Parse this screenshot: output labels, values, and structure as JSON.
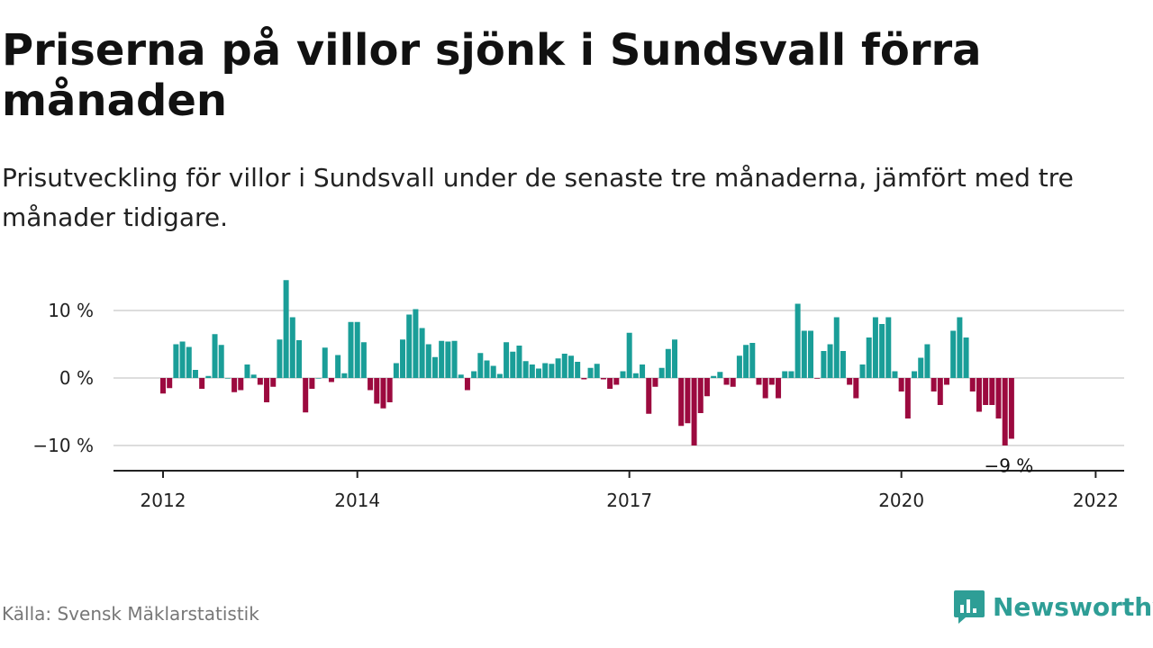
{
  "title": "Priserna på villor sjönk i Sundsvall förra månaden",
  "subtitle": "Prisutveckling för villor i Sundsvall under de senaste tre månaderna, jämfört med tre månader tidigare.",
  "source": "Källa: Svensk Mäklarstatistik",
  "brand": "Newsworthy",
  "colors": {
    "positive": "#1a9e98",
    "negative": "#9c0a3f",
    "grid": "#dddddd",
    "axis": "#222222",
    "brand": "#2e9e96"
  },
  "chart_data": {
    "type": "bar",
    "title": "Priserna på villor sjönk i Sundsvall förra månaden",
    "xlabel": "",
    "ylabel": "",
    "ylim": [
      -13,
      15
    ],
    "y_ticks": [
      10,
      0,
      -10
    ],
    "y_tick_labels": [
      "10 %",
      "0 %",
      "−10 %"
    ],
    "x_ticks": [
      {
        "at": "2012-01",
        "label": "2012"
      },
      {
        "at": "2014-07",
        "label": "2014"
      },
      {
        "at": "2018-01",
        "label": "2017"
      },
      {
        "at": "2021-07",
        "label": "2020"
      },
      {
        "at": "2024-01",
        "label": "2022"
      }
    ],
    "grid": true,
    "last_label": "−9 %",
    "series": [
      {
        "start": "2012-01",
        "values": [
          -2.3,
          -1.5,
          5,
          5.4,
          4.6,
          1.2,
          -1.6,
          0.3,
          6.5,
          4.9,
          0,
          -2.1,
          -1.8,
          2,
          0.5,
          -1,
          -3.6,
          -1.3,
          5.7,
          14.5,
          9,
          5.6,
          -5.1,
          -1.6,
          0,
          4.5,
          -0.6,
          3.4,
          0.7,
          8.3,
          8.3,
          5.3,
          -1.8,
          -3.8,
          -4.5,
          -3.6,
          2.2,
          5.7,
          9.4,
          10.2,
          7.4,
          5,
          3.1,
          5.5,
          5.4,
          5.5,
          0.5,
          -1.8,
          1,
          3.7,
          2.6,
          1.8,
          0.6,
          5.3,
          3.9,
          4.8,
          2.5,
          2,
          1.4,
          2.2,
          2.1,
          2.9,
          3.6,
          3.3,
          2.4,
          -0.2,
          1.5,
          2.1,
          -0.2,
          -1.6,
          -1,
          1,
          6.7,
          0.7,
          2,
          -5.3,
          -1.3,
          1.5,
          4.3,
          5.7,
          -7.1,
          -6.7,
          -10,
          -5.2,
          -2.7,
          0.3,
          0.9,
          -1,
          -1.3,
          3.3,
          4.9,
          5.2,
          -1,
          -3,
          -1,
          -3,
          1,
          1,
          11,
          7,
          7,
          -0.1,
          4,
          5,
          9,
          4,
          -1,
          -3,
          2,
          6,
          9,
          8,
          9,
          1,
          -2,
          -6,
          1,
          3,
          5,
          -2,
          -4,
          -1,
          7,
          9,
          6,
          -2,
          -5,
          -4,
          -4,
          -6,
          -10,
          -9
        ]
      }
    ]
  }
}
